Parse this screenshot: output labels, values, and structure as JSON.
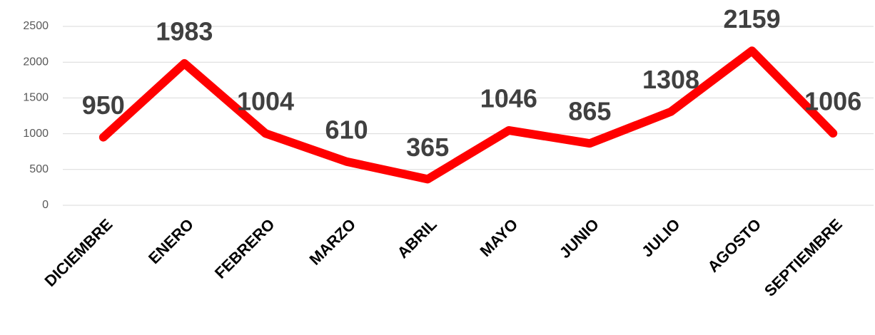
{
  "chart_data": {
    "type": "line",
    "categories": [
      "DICIEMBRE",
      "ENERO",
      "FEBRERO",
      "MARZO",
      "ABRIL",
      "MAYO",
      "JUNIO",
      "JULIO",
      "AGOSTO",
      "SEPTIEMBRE"
    ],
    "series": [
      {
        "color": "#ff0000",
        "values": [
          950,
          1983,
          1004,
          610,
          365,
          1046,
          865,
          1308,
          2159,
          1006
        ]
      }
    ],
    "ylim": [
      0,
      2500
    ],
    "yticks": [
      0,
      500,
      1000,
      1500,
      2000,
      2500
    ],
    "grid": true
  }
}
